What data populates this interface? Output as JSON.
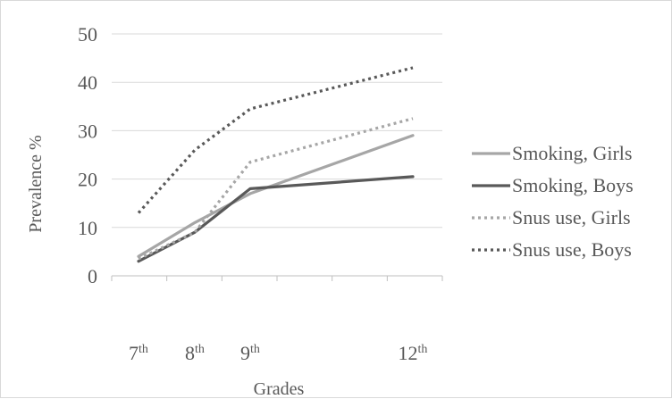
{
  "chart_data": {
    "type": "line",
    "title": "",
    "xlabel": "Grades",
    "ylabel": "Prevalence %",
    "ylim": [
      0,
      50
    ],
    "yticks": [
      0,
      10,
      20,
      30,
      40,
      50
    ],
    "grid": true,
    "legend_position": "right",
    "x": [
      7,
      8,
      9,
      12
    ],
    "x_tick_labels": [
      {
        "base": "7",
        "sup": "th"
      },
      {
        "base": "8",
        "sup": "th"
      },
      {
        "base": "9",
        "sup": "th"
      },
      {
        "base": "12",
        "sup": "th"
      }
    ],
    "series": [
      {
        "name": "Smoking, Girls",
        "values": [
          4,
          11,
          17,
          29
        ],
        "color": "#a6a6a6",
        "dash": "solid"
      },
      {
        "name": "Smoking, Boys",
        "values": [
          3,
          9,
          18,
          20.5
        ],
        "color": "#595959",
        "dash": "solid"
      },
      {
        "name": "Snus use, Girls",
        "values": [
          3.5,
          9,
          23.5,
          32.5
        ],
        "color": "#a6a6a6",
        "dash": "dotted"
      },
      {
        "name": "Snus use, Boys",
        "values": [
          13,
          26,
          34.5,
          43
        ],
        "color": "#595959",
        "dash": "dotted"
      }
    ]
  }
}
